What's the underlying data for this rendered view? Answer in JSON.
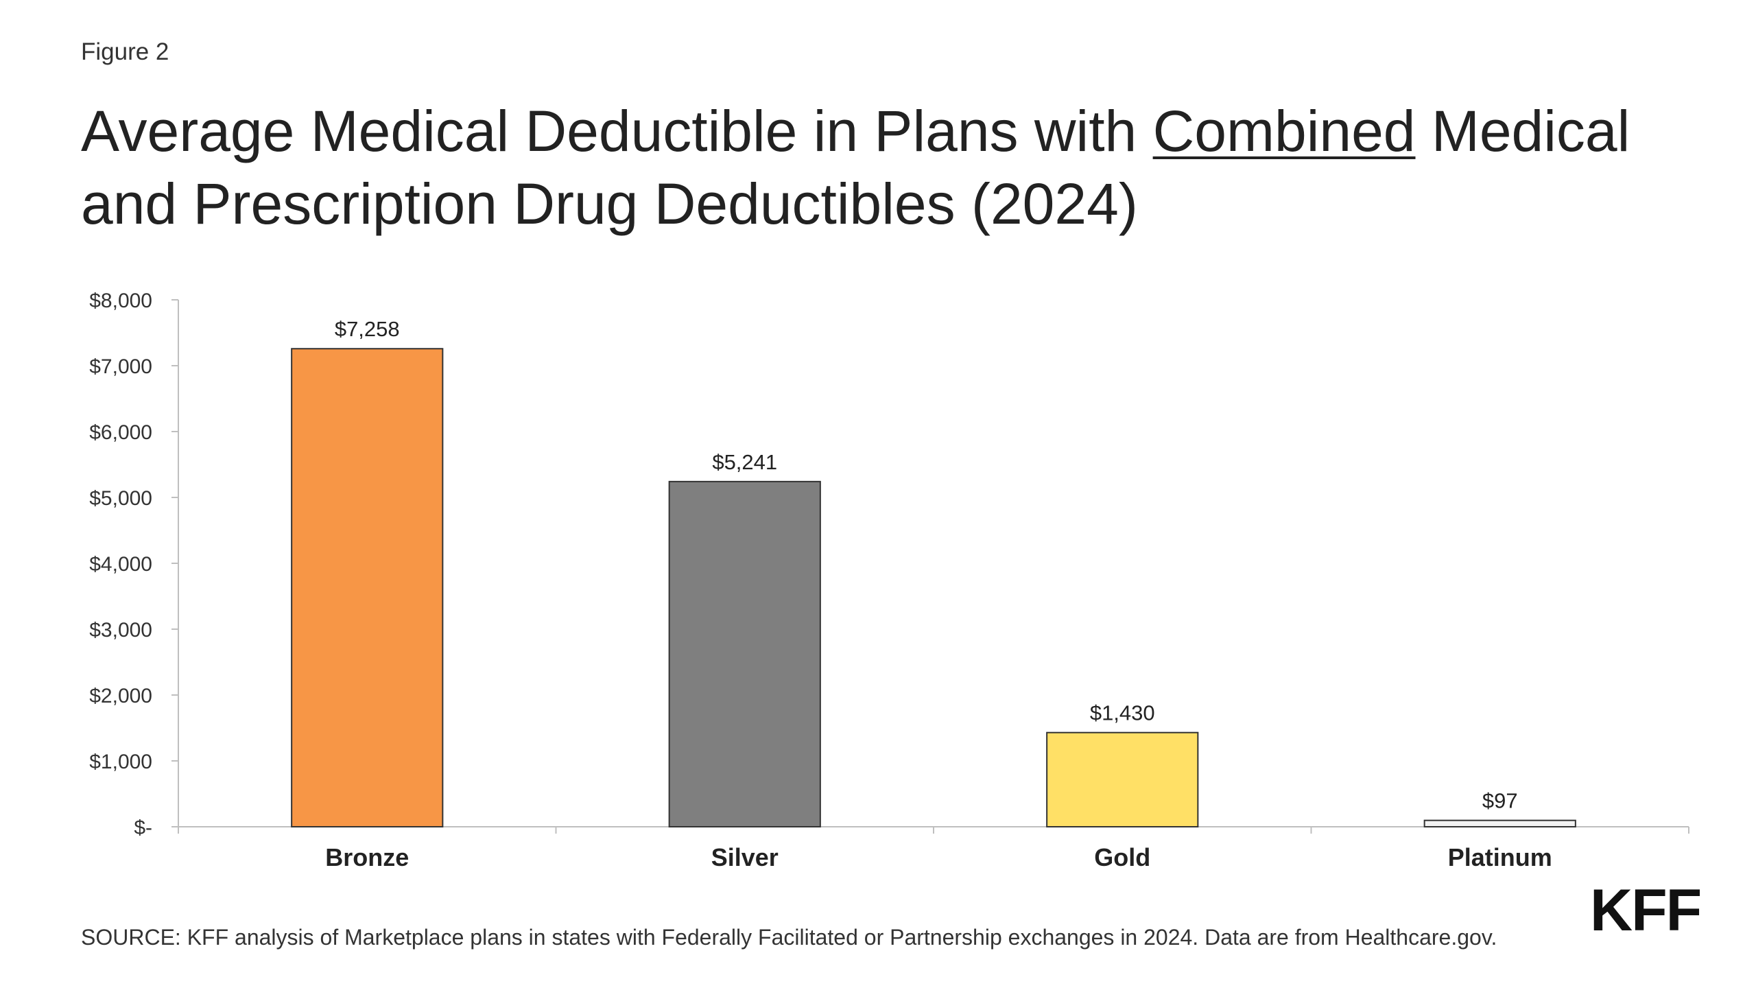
{
  "figure_label": "Figure 2",
  "title": {
    "part1": "Average Medical Deductible in Plans with ",
    "emphasis": "Combined",
    "part2": " Medical and Prescription Drug Deductibles (2024)"
  },
  "source": "SOURCE: KFF analysis of Marketplace plans in states with Federally Facilitated or Partnership exchanges in 2024. Data are from Healthcare.gov.",
  "logo": "KFF",
  "chart_data": {
    "type": "bar",
    "categories": [
      "Bronze",
      "Silver",
      "Gold",
      "Platinum"
    ],
    "values": [
      7258,
      5241,
      1430,
      97
    ],
    "data_labels": [
      "$7,258",
      "$5,241",
      "$1,430",
      "$97"
    ],
    "colors": [
      "#F79646",
      "#7F7F7F",
      "#FFE066",
      "#F2F2F2"
    ],
    "ylim": [
      0,
      8000
    ],
    "yticks": [
      0,
      1000,
      2000,
      3000,
      4000,
      5000,
      6000,
      7000,
      8000
    ],
    "ytick_labels": [
      "$-",
      "$1,000",
      "$2,000",
      "$3,000",
      "$4,000",
      "$5,000",
      "$6,000",
      "$7,000",
      "$8,000"
    ],
    "grid": false,
    "legend": "none"
  }
}
